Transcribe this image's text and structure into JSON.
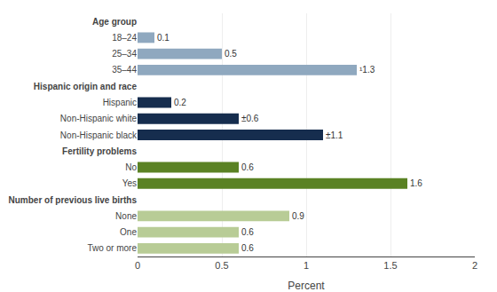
{
  "chart_data": {
    "type": "bar",
    "orientation": "horizontal",
    "categories": [
      "Two or more",
      "One",
      "None",
      "Number of previous live births",
      "Yes",
      "No",
      "Fertility problems",
      "Non-Hispanic black",
      "Non-Hispanic white",
      "Hispanic",
      "Hispanic origin and race",
      "35–44",
      "25–34",
      "18–24",
      "Age group"
    ],
    "values": [
      0.6,
      0.6,
      0.9,
      null,
      1.6,
      0.6,
      null,
      1.1,
      0.6,
      0.2,
      null,
      1.3,
      0.5,
      0.1,
      null
    ],
    "value_labels": [
      "0.6",
      "0.6",
      "0.9",
      null,
      "1.6",
      "0.6",
      null,
      "±1.1",
      "±0.6",
      "0.2",
      null,
      "¹1.3",
      "0.5",
      "0.1",
      null
    ],
    "colors": [
      "#b8cc96",
      "#b8cc96",
      "#b8cc96",
      null,
      "#5a8224",
      "#5a8224",
      null,
      "#162d4e",
      "#162d4e",
      "#162d4e",
      null,
      "#8fa8bf",
      "#8fa8bf",
      "#8fa8bf",
      null
    ],
    "data_labels": true,
    "xlabel": "Percent",
    "xlim": [
      0,
      2
    ],
    "xticks": [
      0,
      0.5,
      1,
      1.5,
      2
    ],
    "grid": true
  }
}
